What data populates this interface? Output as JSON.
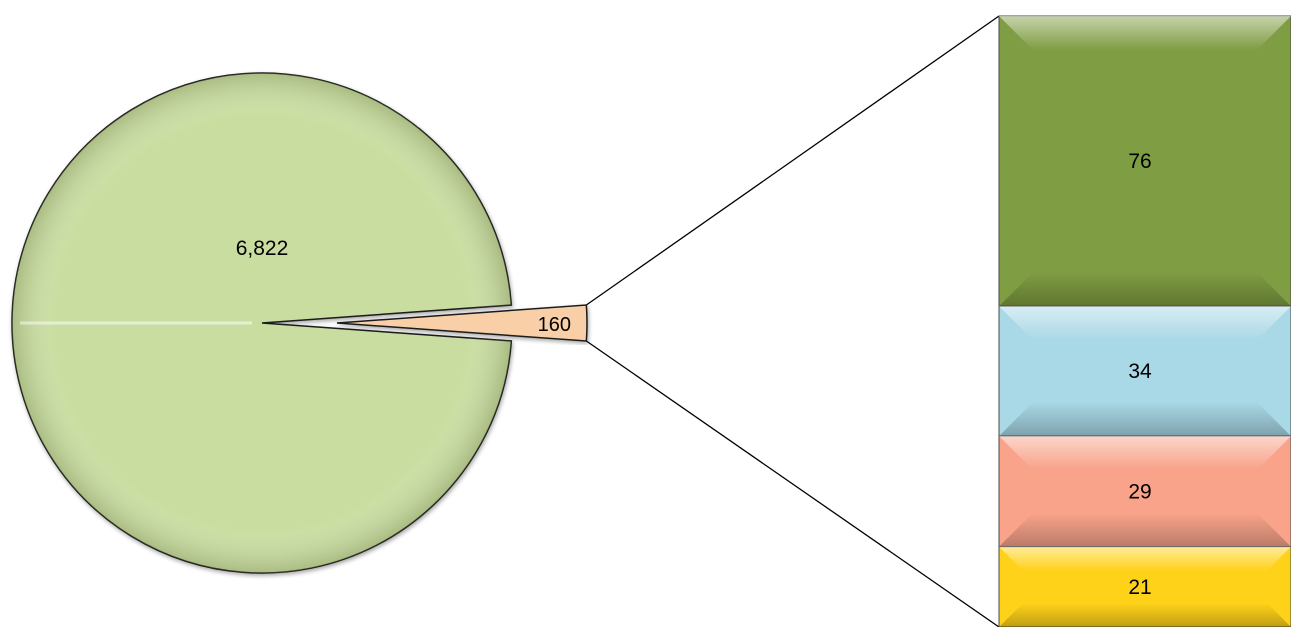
{
  "chart_data": {
    "type": "pie",
    "subtype": "bar-of-pie",
    "title": "",
    "legend": "none",
    "slices": [
      {
        "value": 6822,
        "label": "6,822",
        "color": "#c9dda0"
      },
      {
        "value": 160,
        "label": "160",
        "color": "#f8cfa6",
        "exploded": true
      }
    ],
    "breakdown": {
      "of_slice": "160",
      "segments": [
        {
          "value": 76,
          "label": "76",
          "color": "#7f9d42"
        },
        {
          "value": 34,
          "label": "34",
          "color": "#a9d8e6"
        },
        {
          "value": 29,
          "label": "29",
          "color": "#f8a38a"
        },
        {
          "value": 21,
          "label": "21",
          "color": "#ffd21a"
        }
      ]
    },
    "connector_color": "#000000"
  }
}
